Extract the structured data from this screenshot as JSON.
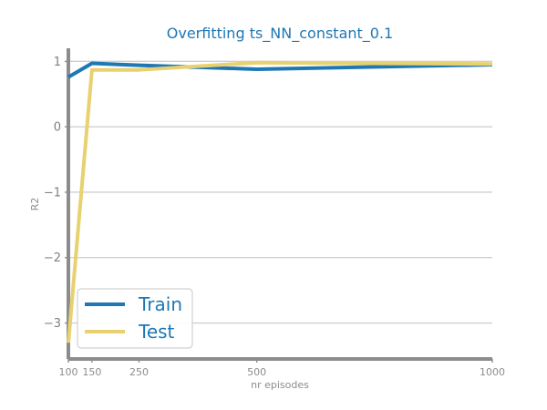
{
  "chart_data": {
    "type": "line",
    "title": "Overfitting ts_NN_constant_0.1",
    "xlabel": "nr episodes",
    "ylabel": "R2",
    "x": [
      100,
      150,
      250,
      500,
      1000
    ],
    "x_ticks": [
      100,
      150,
      250,
      500,
      1000
    ],
    "x_tick_labels": [
      "100",
      "150",
      "250",
      "500",
      "1000"
    ],
    "y_ticks": [
      1,
      0,
      -1,
      -2,
      -3
    ],
    "y_tick_labels": [
      "1",
      "0",
      "−1",
      "−2",
      "−3"
    ],
    "xlim": [
      100,
      1000
    ],
    "ylim": [
      -3.55,
      1.2
    ],
    "grid": "horizontal",
    "legend_position": "lower-left",
    "series": [
      {
        "name": "Train",
        "color": "#1f77b4",
        "values": [
          0.76,
          0.97,
          0.94,
          0.88,
          0.95
        ]
      },
      {
        "name": "Test",
        "color": "#e8d16f",
        "values": [
          -3.3,
          0.87,
          0.87,
          0.98,
          0.96
        ]
      }
    ]
  }
}
